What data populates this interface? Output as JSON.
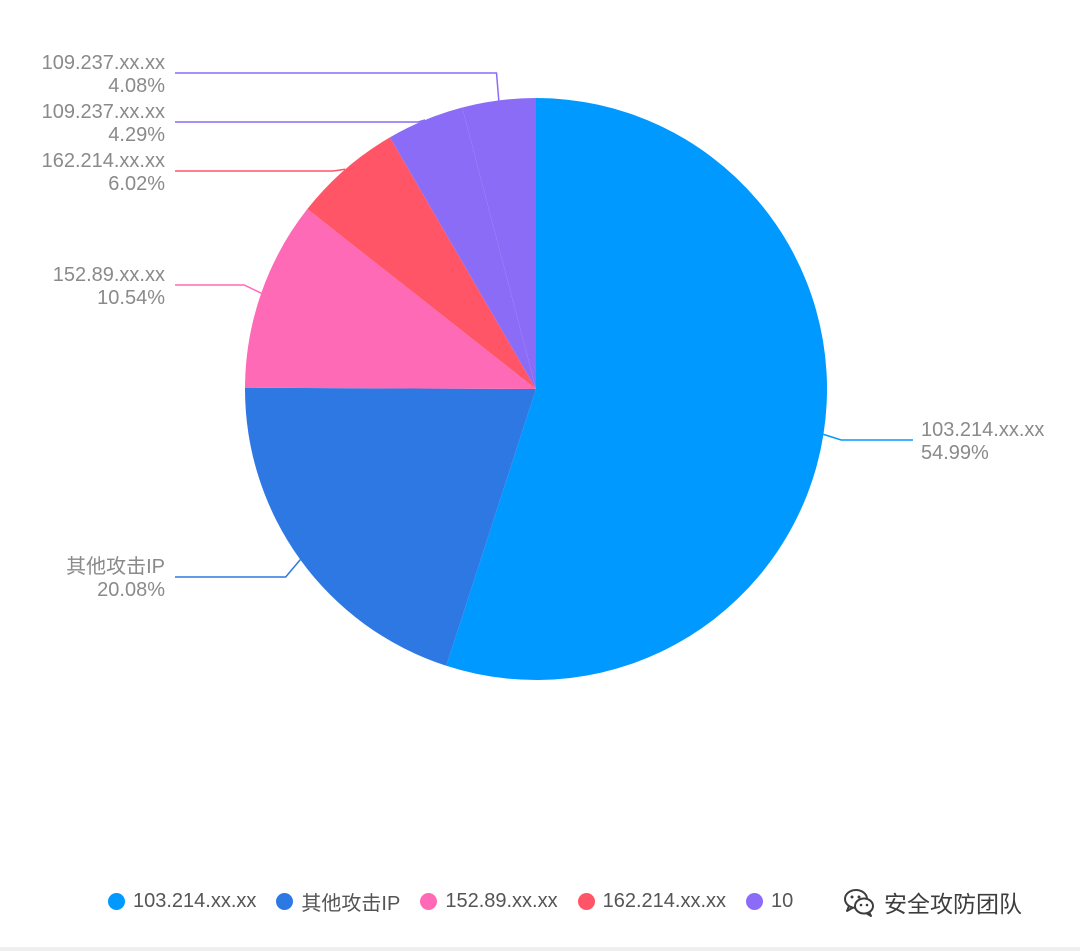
{
  "chart_data": {
    "type": "pie",
    "start_angle_deg": 0,
    "direction": "clockwise",
    "legend_position": "bottom",
    "slices": [
      {
        "label": "103.214.xx.xx",
        "percent_label": "54.99%",
        "value": 54.99,
        "color": "#0099ff"
      },
      {
        "label": "其他攻击IP",
        "percent_label": "20.08%",
        "value": 20.08,
        "color": "#2e78e4"
      },
      {
        "label": "152.89.xx.xx",
        "percent_label": "10.54%",
        "value": 10.54,
        "color": "#ff6ab6"
      },
      {
        "label": "162.214.xx.xx",
        "percent_label": "6.02%",
        "value": 6.02,
        "color": "#ff5566"
      },
      {
        "label": "109.237.xx.xx",
        "percent_label": "4.29%",
        "value": 4.29,
        "color": "#8b6cf7"
      },
      {
        "label": "109.237.xx.xx",
        "percent_label": "4.08%",
        "value": 4.08,
        "color": "#8b6cf7"
      }
    ]
  },
  "legend": {
    "items": [
      {
        "label": "103.214.xx.xx",
        "color": "#0099ff"
      },
      {
        "label": "其他攻击IP",
        "color": "#2e78e4"
      },
      {
        "label": "152.89.xx.xx",
        "color": "#ff6ab6"
      },
      {
        "label": "162.214.xx.xx",
        "color": "#ff5566"
      },
      {
        "label": "10",
        "color": "#8b6cf7"
      }
    ]
  },
  "watermark": {
    "text": "安全攻防团队"
  }
}
